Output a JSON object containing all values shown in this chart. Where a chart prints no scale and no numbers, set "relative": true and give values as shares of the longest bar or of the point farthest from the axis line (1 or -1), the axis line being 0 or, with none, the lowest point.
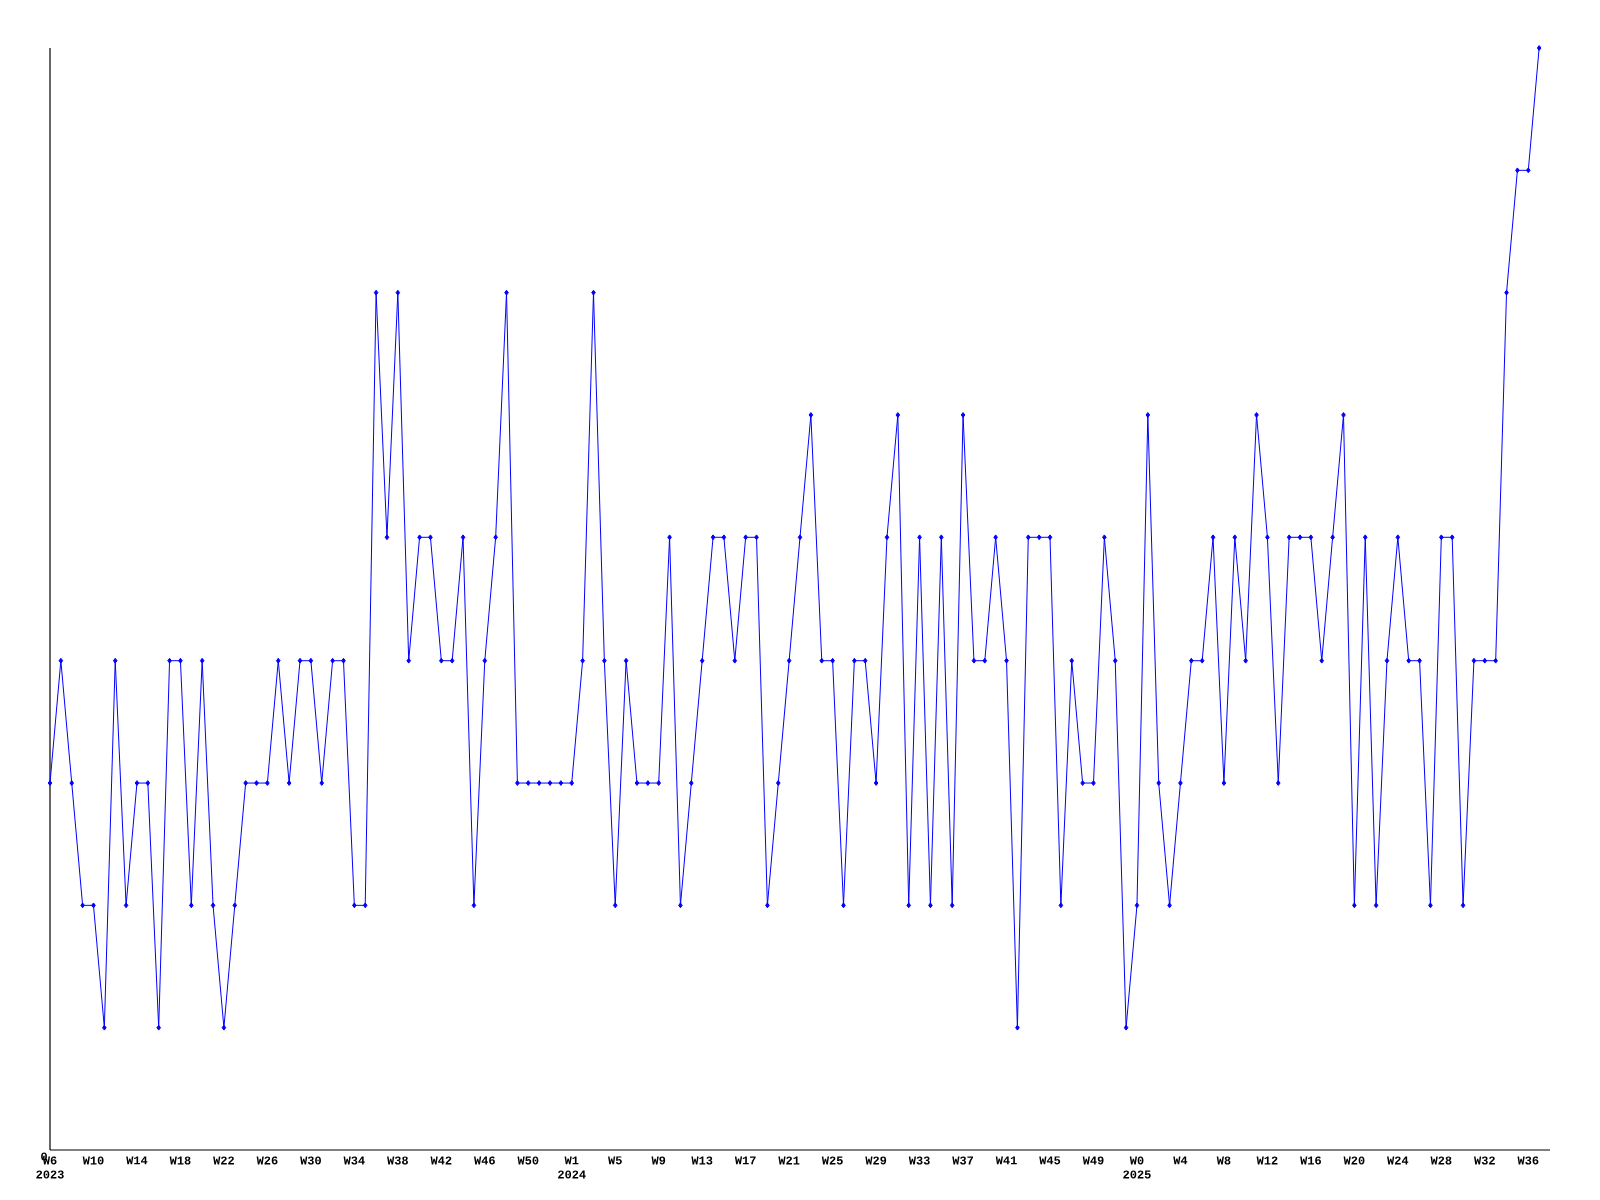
{
  "chart_data": {
    "type": "line",
    "relative": true,
    "color": "#0000ff",
    "marker": "diamond",
    "line_style": "solid",
    "categories": [
      "W6",
      null,
      null,
      null,
      "W10",
      null,
      null,
      null,
      "W14",
      null,
      null,
      null,
      "W18",
      null,
      null,
      null,
      "W22",
      null,
      null,
      null,
      "W26",
      null,
      null,
      null,
      "W30",
      null,
      null,
      null,
      "W34",
      null,
      null,
      null,
      "W38",
      null,
      null,
      null,
      "W42",
      null,
      null,
      null,
      "W46",
      null,
      null,
      null,
      "W50",
      null,
      null,
      null,
      "W1",
      null,
      null,
      null,
      "W5",
      null,
      null,
      null,
      "W9",
      null,
      null,
      null,
      "W13",
      null,
      null,
      null,
      "W17",
      null,
      null,
      null,
      "W21",
      null,
      null,
      null,
      "W25",
      null,
      null,
      null,
      "W29",
      null,
      null,
      null,
      "W33",
      null,
      null,
      null,
      "W37",
      null,
      null,
      null,
      "W41",
      null,
      null,
      null,
      "W45",
      null,
      null,
      null,
      "W49",
      null,
      null,
      null,
      "W0",
      null,
      null,
      null,
      "W4",
      null,
      null,
      null,
      "W8",
      null,
      null,
      null,
      "W12",
      null,
      null,
      null,
      "W16",
      null,
      null,
      null,
      "W20",
      null,
      null,
      null,
      "W24",
      null,
      null,
      null,
      "W28",
      null,
      null,
      null,
      "W32",
      null,
      null,
      null,
      "W36",
      null
    ],
    "values": [
      0.333,
      0.444,
      0.333,
      0.222,
      0.222,
      0.111,
      0.444,
      0.222,
      0.333,
      0.333,
      0.111,
      0.444,
      0.444,
      0.222,
      0.444,
      0.222,
      0.111,
      0.222,
      0.333,
      0.333,
      0.333,
      0.444,
      0.333,
      0.444,
      0.444,
      0.333,
      0.444,
      0.444,
      0.222,
      0.222,
      0.778,
      0.556,
      0.778,
      0.444,
      0.556,
      0.556,
      0.444,
      0.444,
      0.556,
      0.222,
      0.444,
      0.556,
      0.778,
      0.333,
      0.333,
      0.333,
      0.333,
      0.333,
      0.333,
      0.444,
      0.778,
      0.444,
      0.222,
      0.444,
      0.333,
      0.333,
      0.333,
      0.556,
      0.222,
      0.333,
      0.444,
      0.556,
      0.556,
      0.444,
      0.556,
      0.556,
      0.222,
      0.333,
      0.444,
      0.556,
      0.667,
      0.444,
      0.444,
      0.222,
      0.444,
      0.444,
      0.333,
      0.556,
      0.667,
      0.222,
      0.556,
      0.222,
      0.556,
      0.222,
      0.667,
      0.444,
      0.444,
      0.556,
      0.444,
      0.111,
      0.556,
      0.556,
      0.556,
      0.222,
      0.444,
      0.333,
      0.333,
      0.556,
      0.444,
      0.111,
      0.222,
      0.667,
      0.333,
      0.222,
      0.333,
      0.444,
      0.444,
      0.556,
      0.333,
      0.556,
      0.444,
      0.667,
      0.556,
      0.333,
      0.556,
      0.556,
      0.556,
      0.444,
      0.556,
      0.667,
      0.222,
      0.556,
      0.222,
      0.444,
      0.556,
      0.444,
      0.444,
      0.222,
      0.556,
      0.556,
      0.222,
      0.444,
      0.444,
      0.444,
      0.778,
      0.889,
      0.889,
      1
    ],
    "annotations": [
      "0",
      "2023",
      "2024",
      "2025"
    ]
  }
}
